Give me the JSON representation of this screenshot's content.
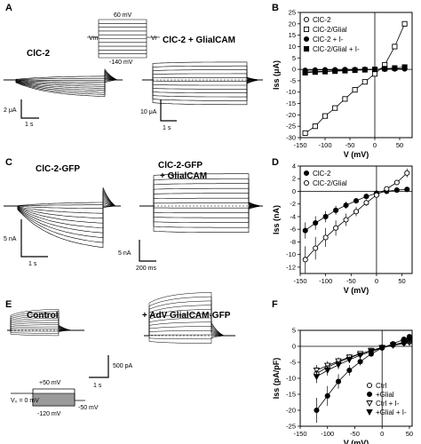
{
  "panels": {
    "A": {
      "letter": "A",
      "left_title": "ClC-2",
      "right_title": "ClC-2 + GlialCAM",
      "protocol": {
        "top": "60 mV",
        "bottom": "-140 mV",
        "vm": "Vm",
        "vr": "Vr"
      },
      "left_scale": {
        "y": "2 μA",
        "x": "1 s"
      },
      "right_scale": {
        "y": "10 μA",
        "x": "1 s"
      }
    },
    "B": {
      "letter": "B"
    },
    "C": {
      "letter": "C",
      "left_title": "ClC-2-GFP",
      "right_title_1": "ClC-2-GFP",
      "right_title_2": "+ GlialCAM",
      "left_scale": {
        "y": "5 nA",
        "x": "1 s"
      },
      "right_scale": {
        "y": "5 nA",
        "x": "200 ms"
      }
    },
    "D": {
      "letter": "D"
    },
    "E": {
      "letter": "E",
      "left_title": "Control",
      "right_title": "+ AdV GlialCAM-GFP",
      "scale": {
        "y": "500 pA",
        "x": "1 s"
      },
      "protocol": {
        "v0": "V₀ = 0 mV",
        "top": "+50 mV",
        "bottom": "-120 mV",
        "tail": "-50 mV"
      }
    },
    "F": {
      "letter": "F"
    }
  },
  "chart_data": [
    {
      "panel": "B",
      "type": "line",
      "xlabel": "V (mV)",
      "ylabel": "Iss (μA)",
      "xlim": [
        -150,
        75
      ],
      "ylim": [
        -30,
        25
      ],
      "xticks": [
        -150,
        -100,
        -50,
        0,
        50
      ],
      "yticks": [
        -30,
        -25,
        -20,
        -15,
        -10,
        -5,
        0,
        5,
        10,
        15,
        20,
        25
      ],
      "legend_position": "top-left",
      "series": [
        {
          "name": "ClC-2",
          "marker": "circle-open",
          "x": [
            -140,
            -120,
            -100,
            -80,
            -60,
            -40,
            -20,
            0,
            20,
            40,
            60
          ],
          "y": [
            -1.2,
            -1.0,
            -0.8,
            -0.6,
            -0.4,
            -0.3,
            -0.2,
            0,
            0.1,
            0.2,
            0.3
          ]
        },
        {
          "name": "ClC-2/Glial",
          "marker": "square-open",
          "x": [
            -140,
            -120,
            -100,
            -80,
            -60,
            -40,
            -20,
            0,
            20,
            40,
            60
          ],
          "y": [
            -28,
            -25,
            -20.5,
            -17,
            -13,
            -9,
            -5.5,
            -2,
            2,
            10,
            20
          ]
        },
        {
          "name": "ClC-2 + I-",
          "marker": "circle-filled",
          "x": [
            -140,
            -120,
            -100,
            -80,
            -60,
            -40,
            -20,
            0,
            20,
            40,
            60
          ],
          "y": [
            -0.4,
            -0.3,
            -0.2,
            -0.2,
            -0.1,
            -0.1,
            0,
            0,
            0.1,
            0.2,
            0.2
          ]
        },
        {
          "name": "ClC-2/Glial + I-",
          "marker": "square-filled",
          "x": [
            -140,
            -120,
            -100,
            -80,
            -60,
            -40,
            -20,
            0,
            20,
            40,
            60
          ],
          "y": [
            -1.5,
            -1.2,
            -1.0,
            -0.8,
            -0.6,
            -0.4,
            -0.2,
            0,
            0.3,
            0.6,
            1.0
          ]
        }
      ]
    },
    {
      "panel": "D",
      "type": "line",
      "xlabel": "V (mV)",
      "ylabel": "Iss (nA)",
      "xlim": [
        -150,
        70
      ],
      "ylim": [
        -13,
        4
      ],
      "xticks": [
        -150,
        -100,
        -50,
        0,
        50
      ],
      "yticks": [
        -12,
        -10,
        -8,
        -6,
        -4,
        -2,
        0,
        2,
        4
      ],
      "legend_position": "top-left",
      "series": [
        {
          "name": "ClC-2",
          "marker": "circle-filled",
          "x": [
            -140,
            -120,
            -100,
            -80,
            -60,
            -40,
            -20,
            0,
            20,
            40,
            60
          ],
          "y": [
            -6.2,
            -5.0,
            -4.0,
            -3.0,
            -2.2,
            -1.5,
            -0.8,
            -0.3,
            0,
            0.2,
            0.3
          ]
        },
        {
          "name": "ClC-2/Glial",
          "marker": "circle-open",
          "x": [
            -140,
            -120,
            -100,
            -80,
            -60,
            -40,
            -20,
            0,
            20,
            40,
            60
          ],
          "y": [
            -10.8,
            -9.0,
            -7.3,
            -5.8,
            -4.5,
            -3.2,
            -1.8,
            -0.6,
            0.4,
            1.4,
            2.9
          ]
        }
      ]
    },
    {
      "panel": "F",
      "type": "line",
      "xlabel": "V (mV)",
      "ylabel": "Iss (pA/pF)",
      "xlim": [
        -150,
        55
      ],
      "ylim": [
        -25,
        5
      ],
      "xticks": [
        -150,
        -100,
        -50,
        0,
        50
      ],
      "yticks": [
        -25,
        -20,
        -15,
        -10,
        -5,
        0,
        5
      ],
      "legend_position": "bottom-right",
      "series": [
        {
          "name": "Ctrl",
          "marker": "circle-open",
          "x": [
            -120,
            -100,
            -80,
            -60,
            -40,
            -20,
            0,
            20,
            40,
            50
          ],
          "y": [
            -8.5,
            -6.5,
            -5.0,
            -3.6,
            -2.4,
            -1.3,
            -0.3,
            0.4,
            1.1,
            1.4
          ]
        },
        {
          "name": "+Glial",
          "marker": "circle-filled",
          "x": [
            -120,
            -100,
            -80,
            -60,
            -40,
            -20,
            0,
            20,
            40,
            50
          ],
          "y": [
            -20,
            -15.5,
            -11,
            -7.5,
            -4.8,
            -2.4,
            -0.5,
            0.8,
            2.2,
            3.0
          ]
        },
        {
          "name": "Ctrl + I-",
          "marker": "triangle-open",
          "x": [
            -120,
            -100,
            -80,
            -60,
            -40,
            -20,
            0,
            20,
            40,
            50
          ],
          "y": [
            -7.5,
            -6.0,
            -4.6,
            -3.4,
            -2.3,
            -1.3,
            -0.4,
            0.3,
            0.9,
            1.2
          ]
        },
        {
          "name": "+Glial + I-",
          "marker": "triangle-filled",
          "x": [
            -120,
            -100,
            -80,
            -60,
            -40,
            -20,
            0,
            20,
            40,
            50
          ],
          "y": [
            -9.5,
            -7.5,
            -5.8,
            -4.2,
            -2.8,
            -1.6,
            -0.5,
            0.4,
            1.3,
            1.8
          ]
        }
      ]
    }
  ]
}
